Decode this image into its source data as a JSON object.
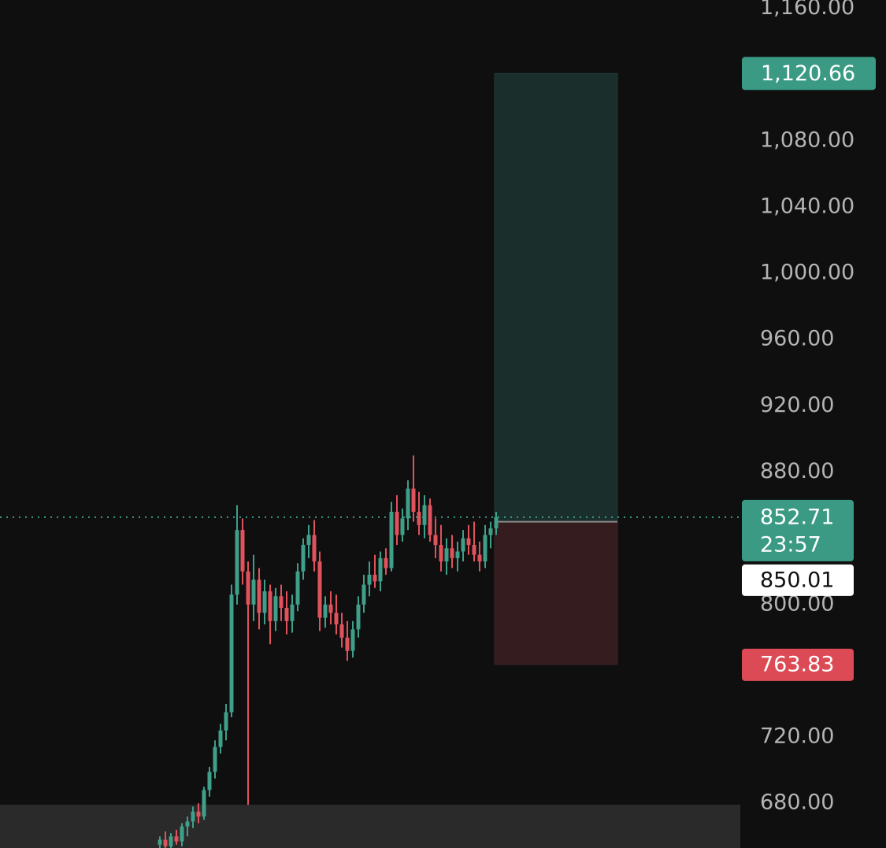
{
  "chart_data": {
    "type": "candlestick",
    "up_color": "#3f9f88",
    "down_color": "#e0525c",
    "open": [
      655,
      658,
      654,
      660,
      657,
      666,
      669,
      675,
      672,
      688,
      699,
      714,
      724,
      735,
      806,
      845,
      820,
      800,
      815,
      795,
      808,
      790,
      805,
      798,
      790,
      800,
      820,
      836,
      842,
      826,
      792,
      800,
      795,
      788,
      780,
      772,
      785,
      800,
      812,
      818,
      814,
      828,
      822,
      856,
      842,
      852,
      870,
      856,
      848,
      860,
      842,
      836,
      826,
      834,
      828,
      832,
      840,
      836,
      830,
      826,
      842,
      846
    ],
    "high": [
      660,
      663,
      662,
      664,
      668,
      672,
      678,
      680,
      690,
      702,
      718,
      728,
      740,
      812,
      860,
      852,
      826,
      830,
      822,
      815,
      812,
      810,
      812,
      808,
      806,
      825,
      840,
      848,
      851,
      832,
      805,
      808,
      806,
      795,
      790,
      790,
      805,
      818,
      826,
      830,
      832,
      834,
      862,
      866,
      858,
      875,
      890,
      868,
      866,
      864,
      852,
      848,
      840,
      842,
      838,
      845,
      848,
      850,
      838,
      848,
      850,
      856
    ],
    "low": [
      650,
      652,
      650,
      655,
      654,
      660,
      665,
      668,
      670,
      684,
      695,
      710,
      718,
      732,
      800,
      812,
      679,
      790,
      785,
      788,
      776,
      784,
      790,
      782,
      783,
      796,
      815,
      828,
      820,
      784,
      786,
      788,
      782,
      774,
      766,
      768,
      780,
      795,
      805,
      810,
      808,
      818,
      820,
      836,
      838,
      845,
      850,
      842,
      840,
      838,
      828,
      820,
      818,
      822,
      820,
      826,
      830,
      826,
      820,
      822,
      834,
      842
    ],
    "close": [
      658,
      654,
      660,
      657,
      666,
      669,
      675,
      672,
      688,
      699,
      714,
      724,
      735,
      806,
      845,
      820,
      800,
      815,
      795,
      808,
      790,
      805,
      798,
      790,
      800,
      820,
      836,
      842,
      826,
      792,
      800,
      795,
      788,
      780,
      772,
      785,
      800,
      812,
      818,
      814,
      828,
      822,
      856,
      842,
      852,
      870,
      856,
      848,
      860,
      842,
      836,
      826,
      834,
      828,
      832,
      840,
      836,
      830,
      826,
      842,
      846,
      852.71
    ],
    "ylim": [
      653,
      1165
    ],
    "yticks": [
      {
        "value": 680,
        "label": "680.00"
      },
      {
        "value": 720,
        "label": "720.00"
      },
      {
        "value": 800,
        "label": "800.00"
      },
      {
        "value": 880,
        "label": "880.00"
      },
      {
        "value": 920,
        "label": "920.00"
      },
      {
        "value": 960,
        "label": "960.00"
      },
      {
        "value": 1000,
        "label": "1,000.00"
      },
      {
        "value": 1040,
        "label": "1,040.00"
      },
      {
        "value": 1080,
        "label": "1,080.00"
      },
      {
        "value": 1160,
        "label": "1,160.00"
      }
    ],
    "last_price": 852.71,
    "countdown": "23:57",
    "position": {
      "target": {
        "value": 1120.66,
        "label": "1,120.66"
      },
      "entry": 850.01,
      "stop": 763.83
    }
  }
}
